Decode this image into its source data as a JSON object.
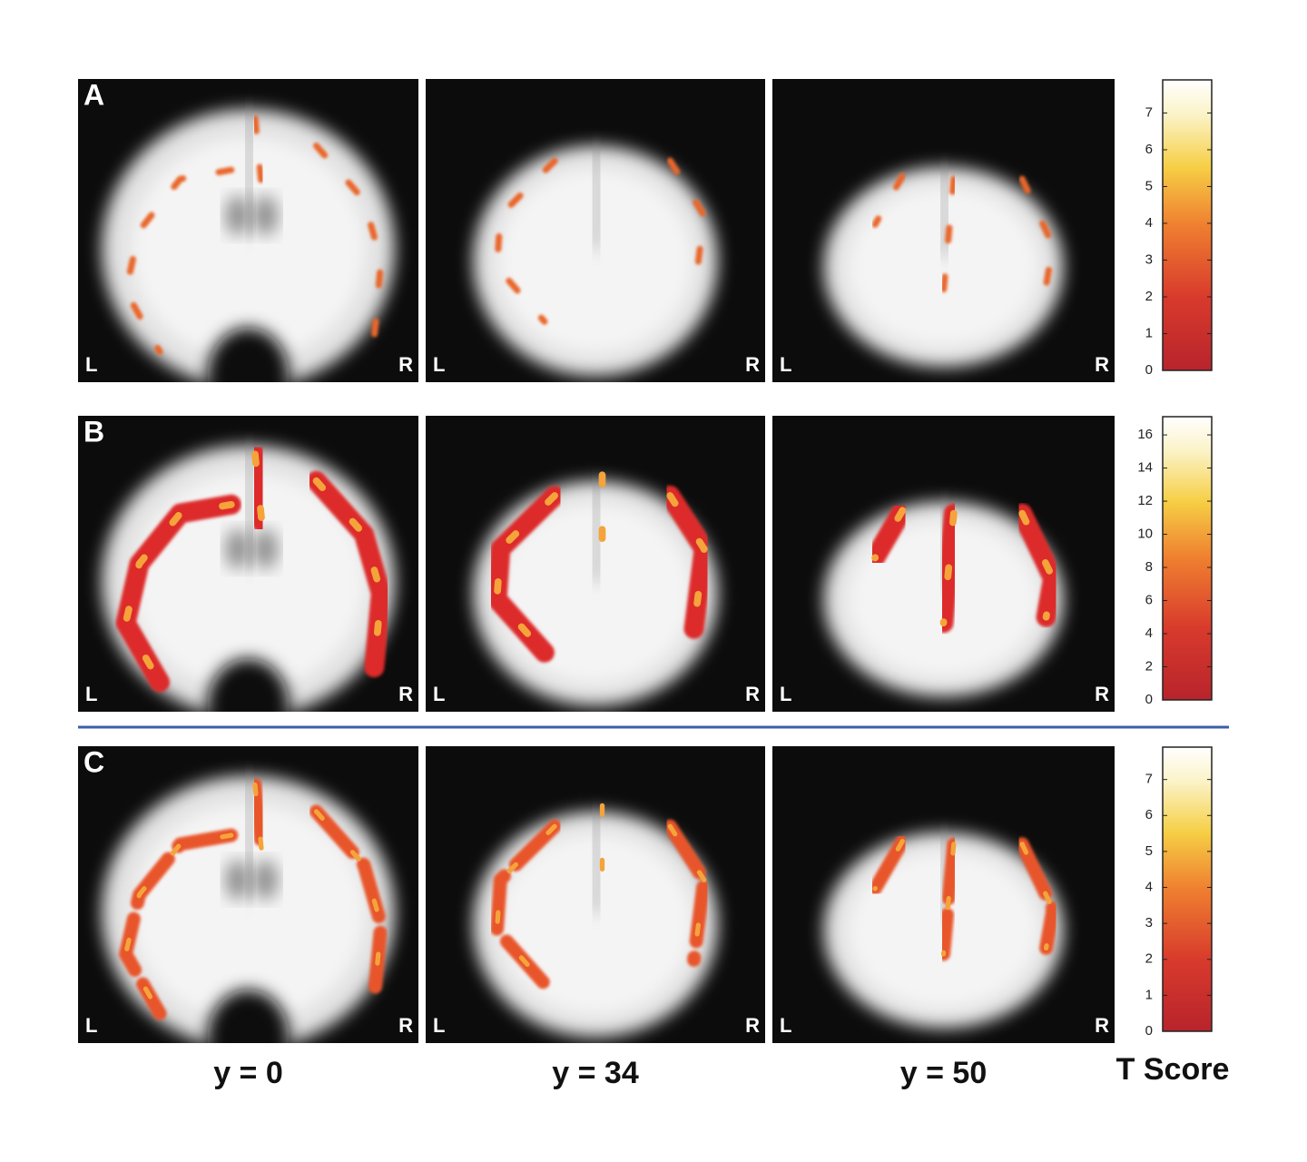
{
  "rows": [
    {
      "label": "A",
      "colorbar": {
        "lim": [
          0,
          7.9
        ],
        "ticks": [
          0,
          1,
          2,
          3,
          4,
          5,
          6,
          7
        ]
      }
    },
    {
      "label": "B",
      "colorbar": {
        "lim": [
          0,
          17.1
        ],
        "ticks": [
          0,
          2,
          4,
          6,
          8,
          10,
          12,
          14,
          16
        ]
      }
    },
    {
      "label": "C",
      "colorbar": {
        "lim": [
          0,
          7.9
        ],
        "ticks": [
          0,
          1,
          2,
          3,
          4,
          5,
          6,
          7
        ]
      }
    }
  ],
  "columns": [
    "y = 0",
    "y = 34",
    "y = 50"
  ],
  "side_labels": {
    "left": "L",
    "right": "R"
  },
  "colorbar_title": "T Score"
}
